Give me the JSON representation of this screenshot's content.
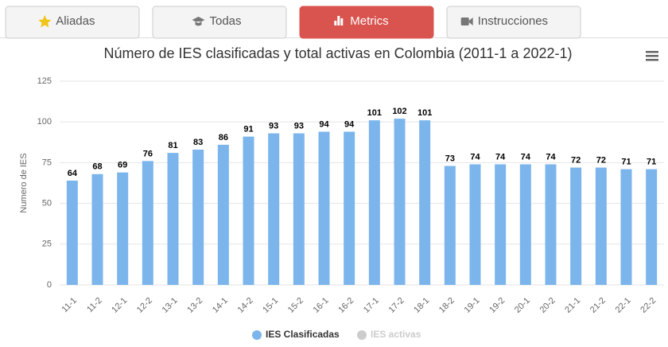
{
  "tabs": [
    {
      "label": "Aliadas"
    },
    {
      "label": "Todas"
    },
    {
      "label": "Metrics",
      "active": true
    },
    {
      "label": "Instrucciones"
    }
  ],
  "chart_data": {
    "type": "bar",
    "title": "Número de IES clasificadas y total activas en Colombia (2011-1 a 2022-1)",
    "y_label": "Numero de IES",
    "categories": [
      "11-1",
      "11-2",
      "12-1",
      "12-2",
      "13-1",
      "13-2",
      "14-1",
      "14-2",
      "15-1",
      "15-2",
      "16-1",
      "16-2",
      "17-1",
      "17-2",
      "18-1",
      "18-2",
      "19-1",
      "19-2",
      "20-1",
      "20-2",
      "21-1",
      "21-2",
      "22-1",
      "22-2"
    ],
    "series": [
      {
        "name": "IES Clasificadas",
        "color": "#7cb5ec",
        "visible": true,
        "values": [
          64,
          68,
          69,
          76,
          81,
          83,
          86,
          91,
          93,
          93,
          94,
          94,
          101,
          102,
          101,
          73,
          74,
          74,
          74,
          74,
          72,
          72,
          71,
          71
        ]
      },
      {
        "name": "IES activas",
        "color": "#cccccc",
        "visible": false,
        "values": [
          null,
          null,
          null,
          null,
          null,
          null,
          null,
          null,
          null,
          null,
          null,
          null,
          null,
          null,
          null,
          null,
          null,
          null,
          null,
          null,
          null,
          null,
          null,
          null
        ]
      }
    ],
    "ylim": [
      0,
      125
    ],
    "yticks": [
      0,
      25,
      50,
      75,
      100,
      125
    ],
    "grid": true
  }
}
